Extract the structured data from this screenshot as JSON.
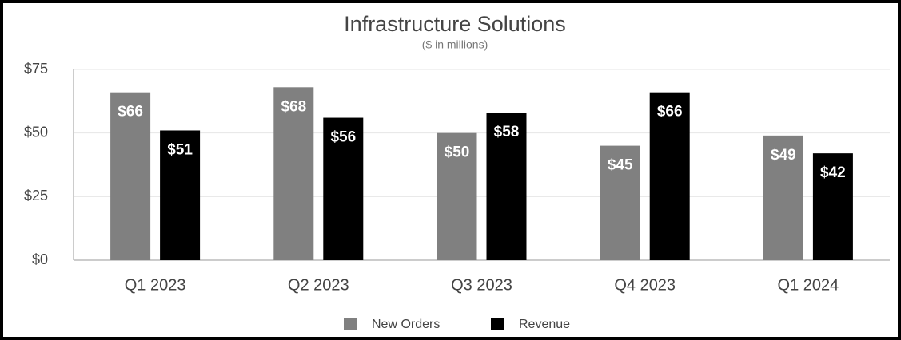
{
  "chart_data": {
    "type": "bar",
    "title": "Infrastructure Solutions",
    "subtitle": "($ in millions)",
    "categories": [
      "Q1 2023",
      "Q2 2023",
      "Q3 2023",
      "Q4 2023",
      "Q1 2024"
    ],
    "series": [
      {
        "name": "New Orders",
        "color": "#808080",
        "values": [
          66,
          68,
          50,
          45,
          49
        ],
        "value_labels": [
          "$66",
          "$68",
          "$50",
          "$45",
          "$49"
        ]
      },
      {
        "name": "Revenue",
        "color": "#000000",
        "values": [
          51,
          56,
          58,
          66,
          42
        ],
        "value_labels": [
          "$51",
          "$56",
          "$58",
          "$66",
          "$42"
        ]
      }
    ],
    "ylim": [
      0,
      75
    ],
    "yticks": [
      {
        "value": 0,
        "label": "$0"
      },
      {
        "value": 25,
        "label": "$25"
      },
      {
        "value": 50,
        "label": "$50"
      },
      {
        "value": 75,
        "label": "$75"
      }
    ],
    "grid": true,
    "legend": "bottom"
  }
}
